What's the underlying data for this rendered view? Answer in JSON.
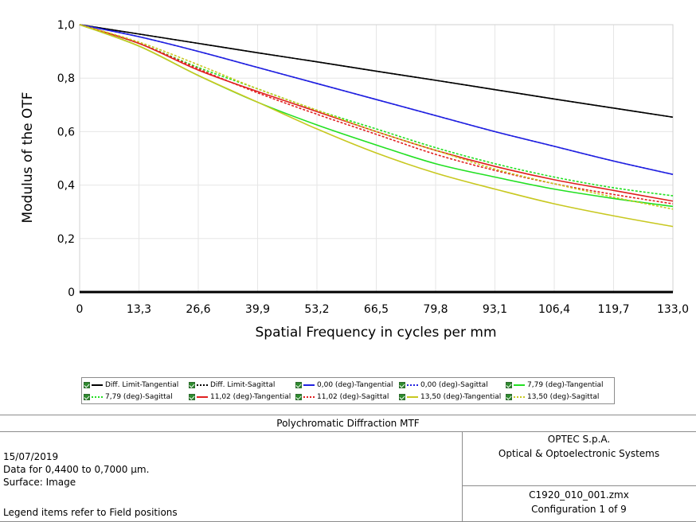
{
  "chart_data": {
    "type": "line",
    "title": "",
    "xlabel": "Spatial Frequency in cycles per mm",
    "ylabel": "Modulus of the OTF",
    "xlim": [
      0,
      133.0
    ],
    "ylim": [
      0,
      1.0
    ],
    "x_ticks": [
      "0",
      "13,3",
      "26,6",
      "39,9",
      "53,2",
      "66,5",
      "79,8",
      "93,1",
      "106,4",
      "119,7",
      "133,0"
    ],
    "y_ticks": [
      "0",
      "0,2",
      "0,4",
      "0,6",
      "0,8",
      "1,0"
    ],
    "grid": true,
    "legend_position": "bottom",
    "x": [
      0,
      13.3,
      26.6,
      39.9,
      53.2,
      66.5,
      79.8,
      93.1,
      106.4,
      119.7,
      133.0
    ],
    "series": [
      {
        "name": "Diff. Limit-Tangential",
        "color": "#000000",
        "dash": "solid",
        "values": [
          1.0,
          0.965,
          0.93,
          0.895,
          0.861,
          0.826,
          0.792,
          0.757,
          0.722,
          0.688,
          0.654
        ]
      },
      {
        "name": "Diff. Limit-Sagittal",
        "color": "#000000",
        "dash": "dotted",
        "values": [
          1.0,
          0.965,
          0.93,
          0.895,
          0.861,
          0.826,
          0.792,
          0.757,
          0.722,
          0.688,
          0.654
        ]
      },
      {
        "name": "0,00 (deg)-Tangential",
        "color": "#2020e0",
        "dash": "solid",
        "values": [
          1.0,
          0.955,
          0.9,
          0.84,
          0.78,
          0.72,
          0.66,
          0.6,
          0.545,
          0.49,
          0.44
        ]
      },
      {
        "name": "0,00 (deg)-Sagittal",
        "color": "#2020e0",
        "dash": "dotted",
        "values": [
          1.0,
          0.955,
          0.9,
          0.84,
          0.78,
          0.72,
          0.66,
          0.6,
          0.545,
          0.49,
          0.44
        ]
      },
      {
        "name": "7,79 (deg)-Tangential",
        "color": "#22e022",
        "dash": "solid",
        "values": [
          1.0,
          0.92,
          0.81,
          0.71,
          0.625,
          0.55,
          0.48,
          0.43,
          0.385,
          0.35,
          0.32
        ]
      },
      {
        "name": "7,79 (deg)-Sagittal",
        "color": "#22e022",
        "dash": "dotted",
        "values": [
          1.0,
          0.93,
          0.84,
          0.76,
          0.68,
          0.61,
          0.54,
          0.48,
          0.43,
          0.39,
          0.36
        ]
      },
      {
        "name": "11,02 (deg)-Tangential",
        "color": "#e02020",
        "dash": "solid",
        "values": [
          1.0,
          0.93,
          0.83,
          0.75,
          0.675,
          0.6,
          0.53,
          0.47,
          0.42,
          0.38,
          0.34
        ]
      },
      {
        "name": "11,02 (deg)-Sagittal",
        "color": "#e02020",
        "dash": "dotted",
        "values": [
          1.0,
          0.93,
          0.835,
          0.745,
          0.665,
          0.59,
          0.515,
          0.455,
          0.405,
          0.365,
          0.33
        ]
      },
      {
        "name": "13,50 (deg)-Tangential",
        "color": "#c8c820",
        "dash": "solid",
        "values": [
          1.0,
          0.92,
          0.81,
          0.71,
          0.61,
          0.52,
          0.445,
          0.385,
          0.33,
          0.285,
          0.245
        ]
      },
      {
        "name": "13,50 (deg)-Sagittal",
        "color": "#c8c820",
        "dash": "dotted",
        "values": [
          1.0,
          0.935,
          0.85,
          0.76,
          0.68,
          0.6,
          0.53,
          0.46,
          0.405,
          0.355,
          0.31
        ]
      }
    ]
  },
  "info": {
    "title": "Polychromatic Diffraction MTF",
    "date": "15/07/2019",
    "wavelength": "Data for 0,4400 to 0,7000 µm.",
    "surface": "Surface: Image",
    "note": "Legend items refer to Field positions",
    "company": "OPTEC S.p.A.",
    "company_sub": "Optical & Optoelectronic Systems",
    "file": "C1920_010_001.zmx",
    "config": "Configuration 1 of 9"
  }
}
